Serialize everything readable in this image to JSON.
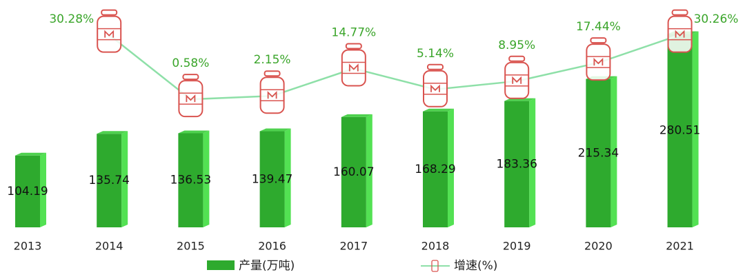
{
  "chart_data": {
    "type": "bar",
    "categories": [
      "2013",
      "2014",
      "2015",
      "2016",
      "2017",
      "2018",
      "2019",
      "2020",
      "2021"
    ],
    "series": [
      {
        "name": "产量(万吨)",
        "type": "bar",
        "color": "#2eaa2e",
        "values": [
          104.19,
          135.74,
          136.53,
          139.47,
          160.07,
          168.29,
          183.36,
          215.34,
          280.51
        ]
      },
      {
        "name": "增速(%)",
        "type": "line",
        "color": "#8ee0a8",
        "marker_color": "#d9534f",
        "values": [
          null,
          30.28,
          0.58,
          2.15,
          14.77,
          5.14,
          8.95,
          17.44,
          30.26
        ],
        "value_labels": [
          null,
          "30.28%",
          "0.58%",
          "2.15%",
          "14.77%",
          "5.14%",
          "8.95%",
          "17.44%",
          "30.26%"
        ]
      }
    ]
  }
}
